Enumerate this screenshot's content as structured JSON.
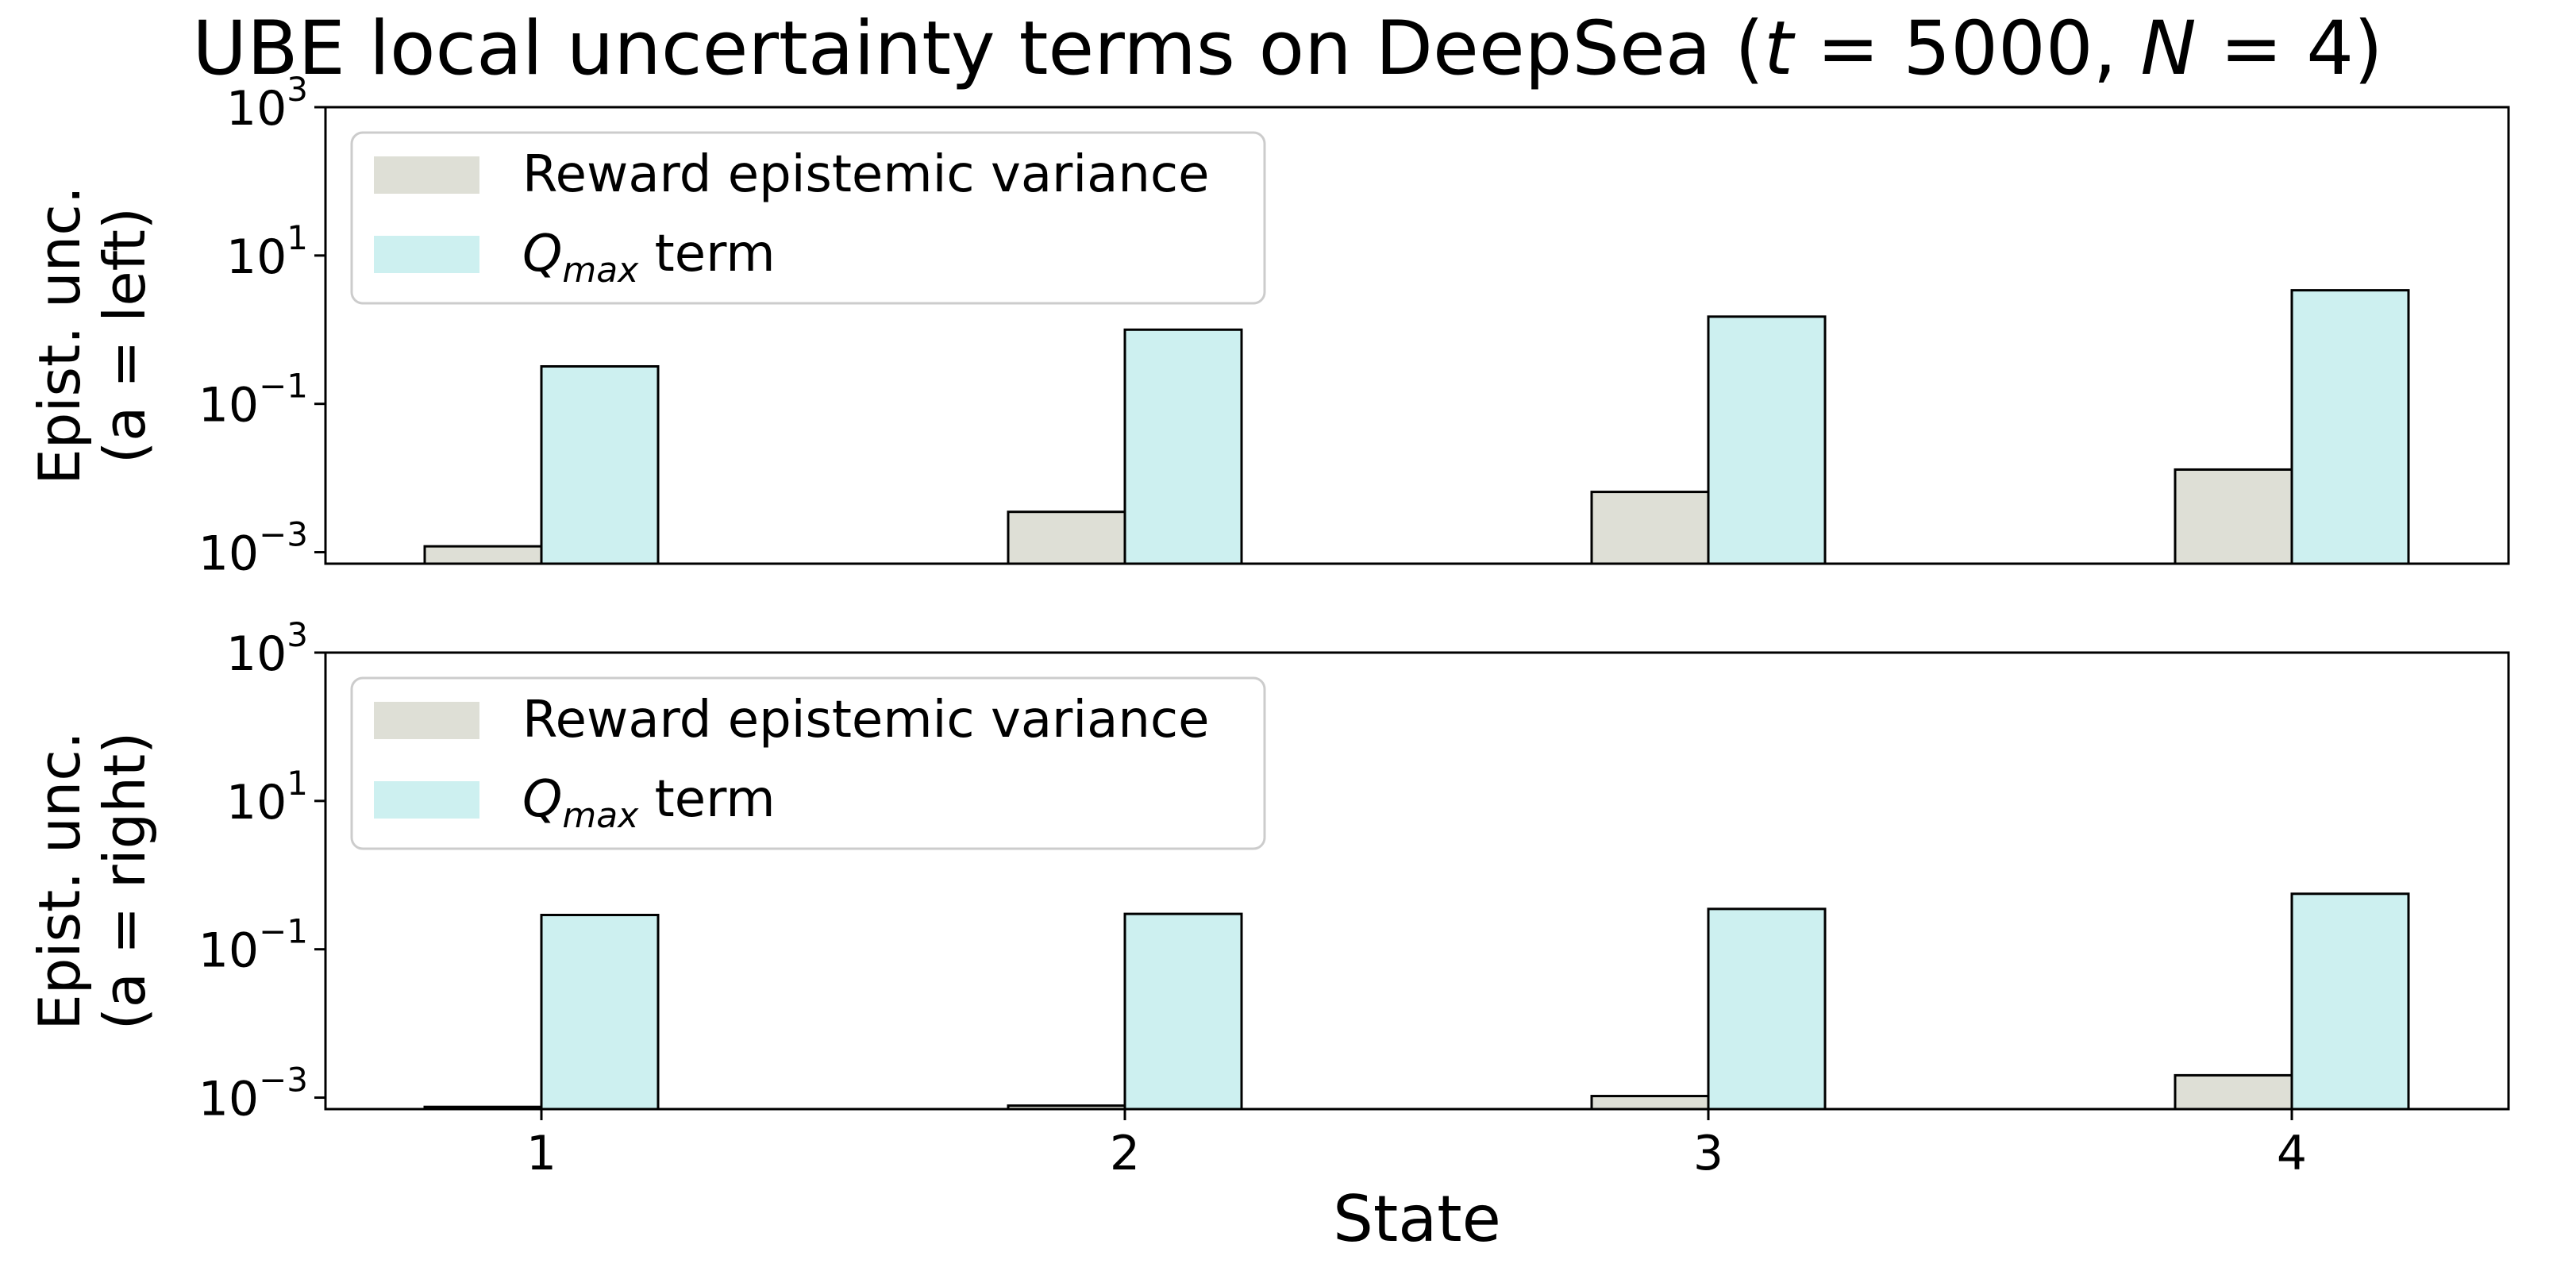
{
  "chart_data": {
    "title": "UBE local uncertainty terms on DeepSea (t = 5000, N = 4)",
    "title_parts": {
      "text": "UBE local uncertainty terms on DeepSea (",
      "t_var": "t",
      "t_val": "5000",
      "sep": ",",
      "n_var": "N",
      "n_val": "4",
      "close": ")"
    },
    "xlabel": "State",
    "categories": [
      "1",
      "2",
      "3",
      "4"
    ],
    "yscale": "log",
    "ylim": [
      0.0007,
      1000
    ],
    "yticks": [
      {
        "base": "10",
        "exp": "3",
        "value": 1000
      },
      {
        "base": "10",
        "exp": "1",
        "value": 10
      },
      {
        "base": "10",
        "exp": "−1",
        "value": 0.1
      },
      {
        "base": "10",
        "exp": "−3",
        "value": 0.001
      }
    ],
    "legend_position": "top-left",
    "legend": {
      "reward_label": "Reward epistemic variance",
      "q_sym": "Q",
      "q_sub": "max",
      "q_suffix": " term"
    },
    "colors": {
      "reward": "#dedfd6",
      "qmax": "#cdf0f0",
      "edge": "#000000"
    },
    "panels": [
      {
        "ylabel_line1": "Epist. unc.",
        "ylabel_line2": "(a = left)",
        "series": [
          {
            "key": "reward",
            "values": [
              0.0012,
              0.0035,
              0.0065,
              0.013
            ]
          },
          {
            "key": "qmax",
            "values": [
              0.32,
              1.0,
              1.5,
              3.4
            ]
          }
        ]
      },
      {
        "ylabel_line1": "Epist. unc.",
        "ylabel_line2": "(a = right)",
        "series": [
          {
            "key": "reward",
            "values": [
              0.00075,
              0.00078,
              0.00105,
              0.002
            ]
          },
          {
            "key": "qmax",
            "values": [
              0.29,
              0.3,
              0.35,
              0.56
            ]
          }
        ]
      }
    ]
  }
}
